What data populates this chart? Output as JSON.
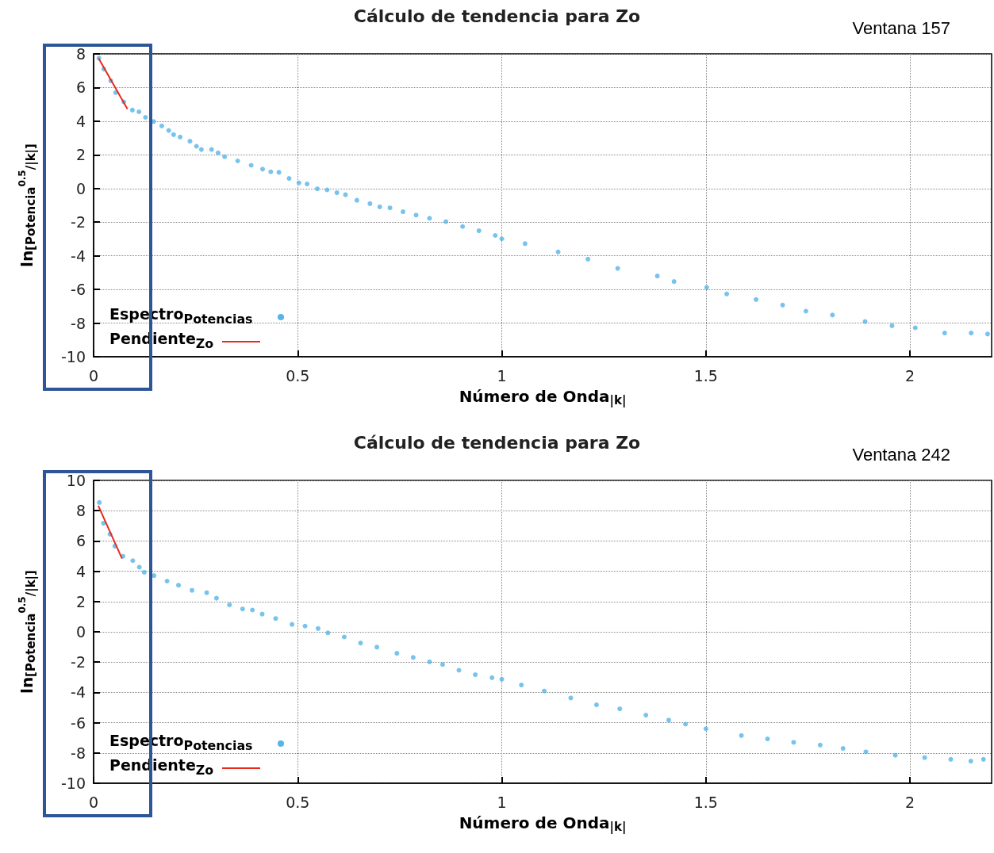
{
  "chart_data": [
    {
      "type": "scatter",
      "title": "Cálculo de tendencia para Zo",
      "xlabel": "Número de Onda$_{|k|}$",
      "ylabel": "ln$_{[Potencia}$$^{0.5}$$_{/|k|]}$",
      "annotations": [
        "Ventana 157"
      ],
      "xlim": [
        0,
        2.2
      ],
      "ylim": [
        -10,
        8
      ],
      "xticks": [
        0,
        0.5,
        1,
        1.5,
        2
      ],
      "yticks": [
        -10,
        -8,
        -6,
        -4,
        -2,
        0,
        2,
        4,
        6,
        8
      ],
      "grid": true,
      "legend": "bottom left",
      "marker": "circle",
      "series": [
        {
          "name": "Espectro$_{Potencias}$",
          "color": "#56b4e9",
          "x": [
            0.013,
            0.025,
            0.042,
            0.054,
            0.074,
            0.095,
            0.111,
            0.127,
            0.147,
            0.167,
            0.184,
            0.196,
            0.212,
            0.236,
            0.252,
            0.264,
            0.289,
            0.305,
            0.321,
            0.353,
            0.386,
            0.414,
            0.434,
            0.454,
            0.479,
            0.503,
            0.523,
            0.548,
            0.572,
            0.596,
            0.617,
            0.645,
            0.677,
            0.701,
            0.726,
            0.758,
            0.79,
            0.823,
            0.863,
            0.904,
            0.944,
            0.984,
            1.0,
            1.057,
            1.138,
            1.211,
            1.284,
            1.381,
            1.422,
            1.502,
            1.551,
            1.623,
            1.688,
            1.745,
            1.81,
            1.89,
            1.956,
            2.013,
            2.085,
            2.15,
            2.19
          ],
          "values": [
            7.75,
            7.1,
            6.4,
            5.7,
            5.15,
            4.66,
            4.56,
            4.23,
            3.98,
            3.72,
            3.45,
            3.2,
            3.06,
            2.81,
            2.51,
            2.32,
            2.32,
            2.12,
            1.89,
            1.64,
            1.38,
            1.15,
            0.99,
            0.96,
            0.6,
            0.33,
            0.27,
            -0.02,
            -0.08,
            -0.25,
            -0.37,
            -0.7,
            -0.9,
            -1.09,
            -1.15,
            -1.38,
            -1.58,
            -1.77,
            -1.97,
            -2.26,
            -2.51,
            -2.79,
            -2.99,
            -3.28,
            -3.77,
            -4.2,
            -4.75,
            -5.2,
            -5.53,
            -5.88,
            -6.27,
            -6.6,
            -6.93,
            -7.29,
            -7.52,
            -7.91,
            -8.16,
            -8.28,
            -8.59,
            -8.59,
            -8.65
          ]
        },
        {
          "name": "Pendiente$_{Zo}$",
          "type": "line",
          "color": "#e8291c",
          "marker": "none",
          "x": [
            0.013,
            0.082
          ],
          "values": [
            7.7,
            4.76
          ]
        }
      ]
    },
    {
      "type": "scatter",
      "title": "Cálculo de tendencia para Zo",
      "xlabel": "Número de Onda$_{|k|}$",
      "ylabel": "ln$_{[Potencia}$$^{0.5}$$_{/|k|]}$",
      "annotations": [
        "Ventana 242"
      ],
      "xlim": [
        0,
        2.2
      ],
      "ylim": [
        -10,
        10
      ],
      "xticks": [
        0,
        0.5,
        1,
        1.5,
        2
      ],
      "yticks": [
        -10,
        -8,
        -6,
        -4,
        -2,
        0,
        2,
        4,
        6,
        8,
        10
      ],
      "grid": true,
      "legend": "bottom left",
      "marker": "circle",
      "series": [
        {
          "name": "Espectro$_{Potencias}$",
          "color": "#56b4e9",
          "x": [
            0.014,
            0.024,
            0.04,
            0.052,
            0.072,
            0.096,
            0.112,
            0.124,
            0.148,
            0.18,
            0.208,
            0.241,
            0.277,
            0.301,
            0.333,
            0.365,
            0.389,
            0.413,
            0.446,
            0.486,
            0.518,
            0.55,
            0.574,
            0.614,
            0.654,
            0.694,
            0.743,
            0.783,
            0.823,
            0.855,
            0.895,
            0.935,
            0.976,
            1.0,
            1.048,
            1.104,
            1.169,
            1.232,
            1.289,
            1.353,
            1.409,
            1.45,
            1.5,
            1.587,
            1.651,
            1.715,
            1.78,
            1.836,
            1.892,
            1.964,
            2.036,
            2.1,
            2.149,
            2.18
          ],
          "values": [
            8.54,
            7.17,
            6.45,
            5.66,
            4.99,
            4.7,
            4.27,
            3.93,
            3.71,
            3.35,
            3.08,
            2.74,
            2.58,
            2.22,
            1.78,
            1.51,
            1.44,
            1.17,
            0.88,
            0.49,
            0.38,
            0.22,
            -0.07,
            -0.34,
            -0.74,
            -1.01,
            -1.42,
            -1.69,
            -1.98,
            -2.16,
            -2.54,
            -2.83,
            -3.03,
            -3.13,
            -3.51,
            -3.91,
            -4.37,
            -4.82,
            -5.09,
            -5.5,
            -5.83,
            -6.1,
            -6.4,
            -6.85,
            -7.07,
            -7.3,
            -7.48,
            -7.7,
            -7.93,
            -8.15,
            -8.31,
            -8.42,
            -8.54,
            -8.42
          ]
        },
        {
          "name": "Pendiente$_{Zo}$",
          "type": "line",
          "color": "#e8291c",
          "marker": "none",
          "x": [
            0.012,
            0.069
          ],
          "values": [
            8.29,
            4.88
          ]
        }
      ]
    }
  ]
}
